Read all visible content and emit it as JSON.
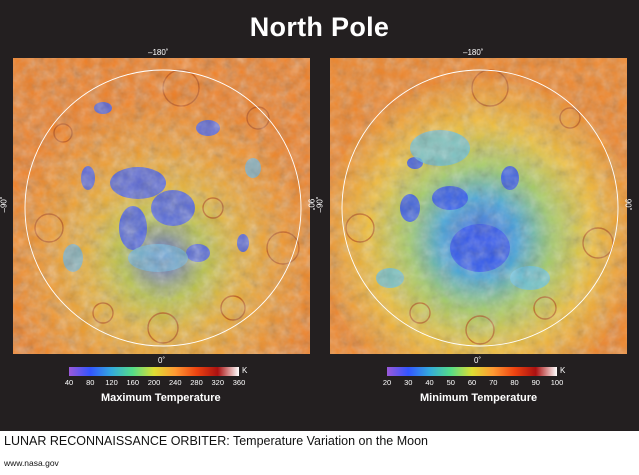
{
  "title": "North Pole",
  "left_map": {
    "label_top": "–180˚",
    "label_bottom": "0˚",
    "label_left": "–90˚",
    "label_right": "90˚",
    "colorbar": {
      "ticks": [
        "40",
        "80",
        "120",
        "160",
        "200",
        "240",
        "280",
        "320",
        "360"
      ],
      "unit": "K",
      "title": "Maximum Temperature",
      "gradient": [
        "#9b59d9",
        "#3355ff",
        "#33aadd",
        "#55dd88",
        "#dddd33",
        "#ff9933",
        "#ee4411",
        "#aa1111",
        "#ffffff"
      ]
    }
  },
  "right_map": {
    "label_top": "–180˚",
    "label_bottom": "0˚",
    "label_left": "–90˚",
    "label_right": "90˚",
    "colorbar": {
      "ticks": [
        "20",
        "30",
        "40",
        "50",
        "60",
        "70",
        "80",
        "90",
        "100"
      ],
      "unit": "K",
      "title": "Minimum Temperature",
      "gradient": [
        "#9b59d9",
        "#3355ff",
        "#33aadd",
        "#55dd88",
        "#dddd33",
        "#ff9933",
        "#ee4411",
        "#aa1111",
        "#ffffff"
      ]
    }
  },
  "caption": "LUNAR RECONNAISSANCE ORBITER: Temperature Variation on the Moon",
  "source": "www.nasa.gov",
  "colors": {
    "background": "#231f20",
    "map_base_orange": "#f08a2a",
    "map_cold_blue": "#3a6cf0"
  }
}
